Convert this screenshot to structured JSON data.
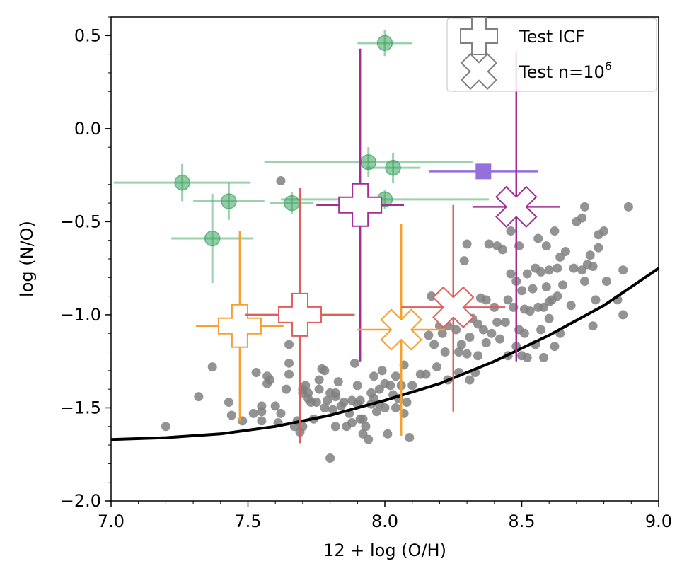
{
  "chart_data": {
    "type": "scatter",
    "title": "",
    "xlabel": "12 + log (O/H)",
    "ylabel": "log (N/O)",
    "xlim": [
      7.0,
      9.0
    ],
    "ylim": [
      -2.0,
      0.6
    ],
    "xticks": [
      7.0,
      7.5,
      8.0,
      8.5,
      9.0
    ],
    "xtick_labels": [
      "7.0",
      "7.5",
      "8.0",
      "8.5",
      "9.0"
    ],
    "yticks": [
      -2.0,
      -1.5,
      -1.0,
      -0.5,
      0.0,
      0.5
    ],
    "ytick_labels": [
      "−2.0",
      "−1.5",
      "−1.0",
      "−0.5",
      "0.0",
      "0.5"
    ],
    "grid": false,
    "legend": {
      "placement": "top-right",
      "entries": [
        {
          "label": "Test ICF",
          "marker": "plus-outline"
        },
        {
          "label_base": "Test n=10",
          "label_exp": "6",
          "marker": "x-outline"
        }
      ]
    },
    "colors": {
      "background_sample": "#808080",
      "green": "#3aa35e",
      "orange": "#f5a030",
      "red": "#de5f5c",
      "magenta": "#a32f96",
      "purple": "#9370db",
      "curve": "#000000",
      "legend_marker": "#808080"
    },
    "background_points": [
      [
        7.2,
        -1.6
      ],
      [
        7.32,
        -1.44
      ],
      [
        7.37,
        -1.28
      ],
      [
        7.43,
        -1.47
      ],
      [
        7.44,
        -1.54
      ],
      [
        7.48,
        -1.57
      ],
      [
        7.49,
        -1.06
      ],
      [
        7.52,
        -1.53
      ],
      [
        7.53,
        -1.31
      ],
      [
        7.55,
        -1.49
      ],
      [
        7.55,
        -1.52
      ],
      [
        7.55,
        -1.57
      ],
      [
        7.57,
        -1.33
      ],
      [
        7.57,
        -1.37
      ],
      [
        7.58,
        -1.35
      ],
      [
        7.6,
        -1.49
      ],
      [
        7.61,
        -1.58
      ],
      [
        7.62,
        -1.53
      ],
      [
        7.64,
        -1.4
      ],
      [
        7.65,
        -1.26
      ],
      [
        7.65,
        -1.32
      ],
      [
        7.65,
        -1.16
      ],
      [
        7.67,
        -1.6
      ],
      [
        7.68,
        -1.57
      ],
      [
        7.69,
        -1.63
      ],
      [
        7.7,
        -1.6
      ],
      [
        7.7,
        -1.42
      ],
      [
        7.7,
        -1.4
      ],
      [
        7.71,
        -1.38
      ],
      [
        7.72,
        -1.45
      ],
      [
        7.72,
        -1.42
      ],
      [
        7.73,
        -1.47
      ],
      [
        7.74,
        -1.56
      ],
      [
        7.75,
        -1.47
      ],
      [
        7.76,
        -1.4
      ],
      [
        7.76,
        -1.35
      ],
      [
        7.77,
        -1.29
      ],
      [
        7.78,
        -1.3
      ],
      [
        7.78,
        -1.5
      ],
      [
        7.79,
        -1.46
      ],
      [
        7.8,
        -1.77
      ],
      [
        7.8,
        -1.42
      ],
      [
        7.81,
        -1.51
      ],
      [
        7.82,
        -1.44
      ],
      [
        7.82,
        -1.6
      ],
      [
        7.83,
        -1.36
      ],
      [
        7.84,
        -1.49
      ],
      [
        7.85,
        -1.47
      ],
      [
        7.86,
        -1.6
      ],
      [
        7.87,
        -1.53
      ],
      [
        7.88,
        -1.46
      ],
      [
        7.88,
        -1.58
      ],
      [
        7.89,
        -1.26
      ],
      [
        7.9,
        -1.38
      ],
      [
        7.9,
        -1.48
      ],
      [
        7.91,
        -1.56
      ],
      [
        7.91,
        -1.46
      ],
      [
        7.92,
        -1.56
      ],
      [
        7.92,
        -1.64
      ],
      [
        7.93,
        -1.6
      ],
      [
        7.94,
        -1.67
      ],
      [
        7.95,
        -1.48
      ],
      [
        7.95,
        -1.42
      ],
      [
        7.96,
        -1.33
      ],
      [
        7.96,
        -1.45
      ],
      [
        7.97,
        -1.52
      ],
      [
        7.98,
        -1.4
      ],
      [
        7.98,
        -1.48
      ],
      [
        7.99,
        -1.3
      ],
      [
        8.0,
        -1.37
      ],
      [
        8.0,
        -1.5
      ],
      [
        8.01,
        -1.64
      ],
      [
        8.02,
        -1.38
      ],
      [
        8.03,
        -1.43
      ],
      [
        8.04,
        -1.5
      ],
      [
        8.04,
        -1.33
      ],
      [
        8.05,
        -1.45
      ],
      [
        8.06,
        -1.38
      ],
      [
        8.07,
        -1.27
      ],
      [
        8.07,
        -1.53
      ],
      [
        8.08,
        -1.47
      ],
      [
        8.09,
        -1.66
      ],
      [
        8.1,
        -1.38
      ],
      [
        8.13,
        -1.32
      ],
      [
        8.15,
        -1.32
      ],
      [
        8.16,
        -1.11
      ],
      [
        8.17,
        -0.9
      ],
      [
        8.18,
        -1.16
      ],
      [
        8.19,
        -1.28
      ],
      [
        8.2,
        -1.06
      ],
      [
        8.21,
        -1.1
      ],
      [
        8.22,
        -1.2
      ],
      [
        8.23,
        -1.06
      ],
      [
        8.23,
        -1.35
      ],
      [
        8.25,
        -0.98
      ],
      [
        8.26,
        -1.08
      ],
      [
        8.27,
        -1.2
      ],
      [
        8.27,
        -1.31
      ],
      [
        8.28,
        -1.16
      ],
      [
        8.29,
        -0.71
      ],
      [
        8.3,
        -0.62
      ],
      [
        8.3,
        -1.21
      ],
      [
        8.31,
        -1.12
      ],
      [
        8.31,
        -1.35
      ],
      [
        8.32,
        -1.02
      ],
      [
        8.33,
        -1.31
      ],
      [
        8.34,
        -1.05
      ],
      [
        8.34,
        -1.22
      ],
      [
        8.35,
        -0.91
      ],
      [
        8.36,
        -1.08
      ],
      [
        8.37,
        -0.92
      ],
      [
        8.37,
        -1.15
      ],
      [
        8.38,
        -0.62
      ],
      [
        8.39,
        -1.1
      ],
      [
        8.4,
        -0.96
      ],
      [
        8.41,
        -0.63
      ],
      [
        8.41,
        -1.04
      ],
      [
        8.42,
        -1.13
      ],
      [
        8.43,
        -0.65
      ],
      [
        8.44,
        -1.04
      ],
      [
        8.45,
        -0.92
      ],
      [
        8.45,
        -1.22
      ],
      [
        8.46,
        -0.78
      ],
      [
        8.46,
        -0.55
      ],
      [
        8.47,
        -0.96
      ],
      [
        8.48,
        -0.82
      ],
      [
        8.48,
        -1.17
      ],
      [
        8.49,
        -0.63
      ],
      [
        8.49,
        -1.08
      ],
      [
        8.5,
        -0.87
      ],
      [
        8.5,
        -1.22
      ],
      [
        8.51,
        -0.97
      ],
      [
        8.51,
        -1.1
      ],
      [
        8.52,
        -0.78
      ],
      [
        8.52,
        -1.23
      ],
      [
        8.53,
        -0.98
      ],
      [
        8.53,
        -0.48
      ],
      [
        8.54,
        -0.86
      ],
      [
        8.55,
        -0.75
      ],
      [
        8.55,
        -1.16
      ],
      [
        8.56,
        -0.96
      ],
      [
        8.56,
        -0.59
      ],
      [
        8.57,
        -0.77
      ],
      [
        8.57,
        -1.08
      ],
      [
        8.58,
        -0.96
      ],
      [
        8.58,
        -1.23
      ],
      [
        8.59,
        -0.63
      ],
      [
        8.59,
        -0.85
      ],
      [
        8.6,
        -0.76
      ],
      [
        8.6,
        -1.02
      ],
      [
        8.6,
        -0.93
      ],
      [
        8.61,
        -0.92
      ],
      [
        8.62,
        -0.55
      ],
      [
        8.62,
        -1.17
      ],
      [
        8.63,
        -0.75
      ],
      [
        8.63,
        -0.9
      ],
      [
        8.64,
        -1.1
      ],
      [
        8.64,
        -0.69
      ],
      [
        8.65,
        -0.84
      ],
      [
        8.66,
        -0.66
      ],
      [
        8.68,
        -0.95
      ],
      [
        8.69,
        -0.75
      ],
      [
        8.7,
        -0.5
      ],
      [
        8.72,
        -0.76
      ],
      [
        8.72,
        -0.48
      ],
      [
        8.73,
        -0.82
      ],
      [
        8.73,
        -0.42
      ],
      [
        8.74,
        -0.73
      ],
      [
        8.75,
        -0.68
      ],
      [
        8.76,
        -0.74
      ],
      [
        8.76,
        -1.06
      ],
      [
        8.77,
        -0.92
      ],
      [
        8.78,
        -0.64
      ],
      [
        8.78,
        -0.57
      ],
      [
        8.8,
        -0.55
      ],
      [
        8.81,
        -0.82
      ],
      [
        8.85,
        -0.92
      ],
      [
        8.87,
        -0.76
      ],
      [
        8.87,
        -1.0
      ],
      [
        8.89,
        -0.42
      ],
      [
        7.62,
        -0.28
      ],
      [
        7.82,
        -1.42
      ]
    ],
    "green_points": [
      {
        "x": 7.26,
        "y": -0.29,
        "xerr": 0.25,
        "yerr": 0.1
      },
      {
        "x": 7.37,
        "y": -0.59,
        "xerr": 0.15,
        "yerr": 0.24
      },
      {
        "x": 7.43,
        "y": -0.39,
        "xerr": 0.13,
        "yerr": 0.1
      },
      {
        "x": 7.66,
        "y": -0.4,
        "xerr": 0.08,
        "yerr": 0.06
      },
      {
        "x": 7.94,
        "y": -0.18,
        "xerr": 0.38,
        "yerr": 0.08
      },
      {
        "x": 8.0,
        "y": -0.38,
        "xerr": 0.38,
        "yerr": 0.05
      },
      {
        "x": 8.0,
        "y": 0.46,
        "xerr": 0.1,
        "yerr": 0.07
      },
      {
        "x": 8.03,
        "y": -0.21,
        "xerr": 0.1,
        "yerr": 0.08
      }
    ],
    "icf_crosses": [
      {
        "x": 7.47,
        "y": -1.06,
        "xerr": 0.16,
        "yerr_low": 0.51,
        "yerr_high": 0.51,
        "color": "orange"
      },
      {
        "x": 7.69,
        "y": -1.0,
        "xerr": 0.2,
        "yerr_low": 0.69,
        "yerr_high": 0.68,
        "color": "red"
      },
      {
        "x": 7.91,
        "y": -0.41,
        "xerr": 0.16,
        "yerr_low": 0.84,
        "yerr_high": 0.84,
        "color": "magenta"
      }
    ],
    "x_markers": [
      {
        "x": 8.06,
        "y": -1.08,
        "xerr": 0.16,
        "yerr_low": 0.57,
        "yerr_high": 0.57,
        "color": "orange"
      },
      {
        "x": 8.25,
        "y": -0.96,
        "xerr": 0.19,
        "yerr_low": 0.56,
        "yerr_high": 0.55,
        "color": "red"
      },
      {
        "x": 8.48,
        "y": -0.42,
        "xerr": 0.16,
        "yerr_low": 0.83,
        "yerr_high": 0.83,
        "color": "magenta"
      }
    ],
    "square_point": {
      "x": 8.36,
      "y": -0.23,
      "xerr": 0.2,
      "color": "purple"
    },
    "curve": [
      [
        7.0,
        -1.67
      ],
      [
        7.2,
        -1.66
      ],
      [
        7.4,
        -1.64
      ],
      [
        7.6,
        -1.6
      ],
      [
        7.8,
        -1.54
      ],
      [
        8.0,
        -1.46
      ],
      [
        8.2,
        -1.37
      ],
      [
        8.4,
        -1.25
      ],
      [
        8.6,
        -1.11
      ],
      [
        8.8,
        -0.95
      ],
      [
        9.0,
        -0.75
      ]
    ]
  }
}
